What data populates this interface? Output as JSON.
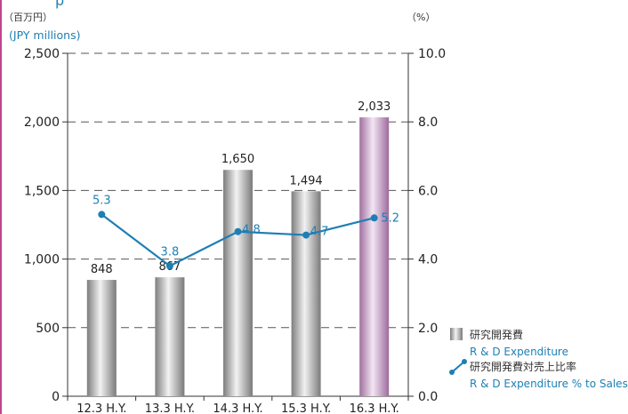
{
  "chart_data": {
    "type": "bar",
    "partial_title": "p",
    "left_unit_ja": "（百万円）",
    "left_unit_en": "(JPY millions)",
    "right_unit": "（%）",
    "categories": [
      "12.3 H.Y.",
      "13.3 H.Y.",
      "14.3 H.Y.",
      "15.3 H.Y.",
      "16.3 H.Y."
    ],
    "series": [
      {
        "name": "研究開発費",
        "name_en": "R & D Expenditure",
        "type": "bar",
        "axis": "left",
        "values": [
          848,
          867,
          1650,
          1494,
          2033
        ],
        "labels": [
          "848",
          "867",
          "1,650",
          "1,494",
          "2,033"
        ]
      },
      {
        "name": "研究開発費対売上比率",
        "name_en": "R & D Expenditure % to Sales",
        "type": "line",
        "axis": "right",
        "values": [
          5.3,
          3.8,
          4.8,
          4.7,
          5.2
        ],
        "labels": [
          "5.3",
          "3.8",
          "4.8",
          "4.7",
          "5.2"
        ]
      }
    ],
    "ylim": [
      0,
      2500
    ],
    "y2lim": [
      0,
      10
    ],
    "yticks": [
      "0",
      "500",
      "1,000",
      "1,500",
      "2,000",
      "2,500"
    ],
    "y2ticks": [
      "0.0",
      "2.0",
      "4.0",
      "6.0",
      "8.0",
      "10.0"
    ],
    "grid": "dashed",
    "legend_position": "right",
    "colors": {
      "bar_gray": "#a8a8a8",
      "bar_highlight": "#c9a0c9",
      "line": "#1e7fb4",
      "line_label": "#1e7fb4",
      "unit_en": "#1e7fb4",
      "frame_accent": "#c0448c"
    }
  }
}
